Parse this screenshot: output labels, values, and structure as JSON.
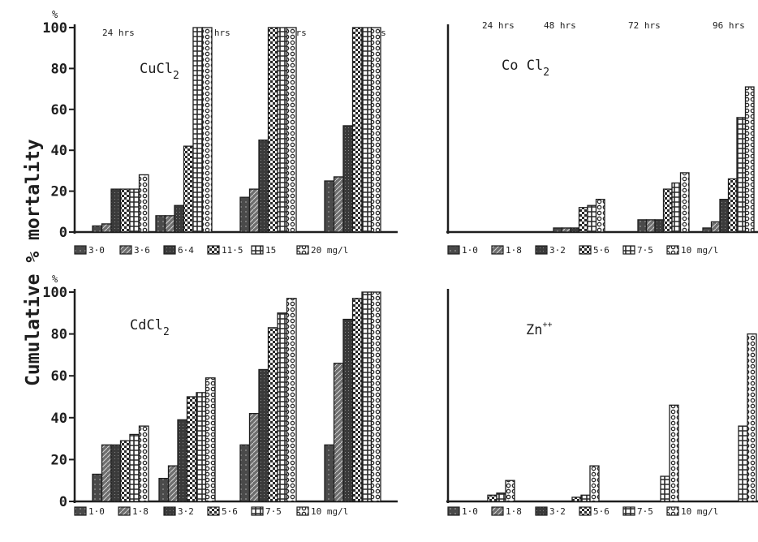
{
  "figure": {
    "ylabel": "Cumulative % mortality"
  },
  "chart_data": [
    {
      "type": "bar",
      "title": "CuCl",
      "title_sub": "2",
      "ylabel_unit": "%",
      "ylim": [
        0,
        100
      ],
      "yticks": [
        0,
        20,
        40,
        60,
        80,
        100
      ],
      "categories": [
        "24 hrs",
        "48 hrs",
        "72 hrs",
        "96 hrs"
      ],
      "legend_items": [
        "3·0",
        "3·6",
        "6·4",
        "11·5",
        "15",
        "20 mg/l"
      ],
      "series": [
        {
          "name": "3·0",
          "values": [
            3,
            8,
            17,
            25
          ]
        },
        {
          "name": "3·6",
          "values": [
            4,
            8,
            21,
            27
          ]
        },
        {
          "name": "6·4",
          "values": [
            21,
            13,
            45,
            52
          ]
        },
        {
          "name": "11·5",
          "values": [
            21,
            42,
            100,
            100
          ]
        },
        {
          "name": "15",
          "values": [
            21,
            100,
            100,
            100
          ]
        },
        {
          "name": "20 mg/l",
          "values": [
            28,
            100,
            100,
            100
          ]
        }
      ]
    },
    {
      "type": "bar",
      "title": "Co Cl",
      "title_sub": "2",
      "ylabel_unit": "",
      "ylim": [
        0,
        100
      ],
      "yticks": [],
      "categories": [
        "24 hrs",
        "48 hrs",
        "72 hrs",
        "96 hrs"
      ],
      "legend_items": [
        "1·0",
        "1·8",
        "3·2",
        "5·6",
        "7·5",
        "10 mg/l"
      ],
      "series": [
        {
          "name": "1·0",
          "values": [
            0,
            2,
            6,
            2
          ]
        },
        {
          "name": "1·8",
          "values": [
            0,
            2,
            6,
            5
          ]
        },
        {
          "name": "3·2",
          "values": [
            0,
            2,
            6,
            16
          ]
        },
        {
          "name": "5·6",
          "values": [
            0,
            12,
            21,
            26
          ]
        },
        {
          "name": "7·5",
          "values": [
            0,
            13,
            24,
            56
          ]
        },
        {
          "name": "10 mg/l",
          "values": [
            0,
            16,
            29,
            71
          ]
        }
      ]
    },
    {
      "type": "bar",
      "title": "CdCl",
      "title_sub": "2",
      "ylabel_unit": "%",
      "ylim": [
        0,
        100
      ],
      "yticks": [
        0,
        20,
        40,
        60,
        80,
        100
      ],
      "categories": [
        "24 hrs",
        "48 hrs",
        "72 hrs",
        "96 hrs"
      ],
      "legend_items": [
        "1·0",
        "1·8",
        "3·2",
        "5·6",
        "7·5",
        "10 mg/l"
      ],
      "series": [
        {
          "name": "1·0",
          "values": [
            13,
            11,
            27,
            27
          ]
        },
        {
          "name": "1·8",
          "values": [
            27,
            17,
            42,
            66
          ]
        },
        {
          "name": "3·2",
          "values": [
            27,
            39,
            63,
            87
          ]
        },
        {
          "name": "5·6",
          "values": [
            29,
            50,
            83,
            97
          ]
        },
        {
          "name": "7·5",
          "values": [
            32,
            52,
            90,
            100
          ]
        },
        {
          "name": "10 mg/l",
          "values": [
            36,
            59,
            97,
            100
          ]
        }
      ]
    },
    {
      "type": "bar",
      "title": "Zn",
      "title_sup": "++",
      "ylabel_unit": "",
      "ylim": [
        0,
        100
      ],
      "yticks": [],
      "categories": [
        "24 hrs",
        "48 hrs",
        "72 hrs",
        "96 hrs"
      ],
      "legend_items": [
        "1·0",
        "1·8",
        "3·2",
        "5·6",
        "7·5",
        "10 mg/l"
      ],
      "series": [
        {
          "name": "1·0",
          "values": [
            0,
            0,
            0,
            0
          ]
        },
        {
          "name": "1·8",
          "values": [
            0,
            0,
            0,
            0
          ]
        },
        {
          "name": "3·2",
          "values": [
            0,
            0,
            0,
            0
          ]
        },
        {
          "name": "5·6",
          "values": [
            3,
            2,
            0,
            0
          ]
        },
        {
          "name": "7·5",
          "values": [
            4,
            3,
            12,
            36
          ]
        },
        {
          "name": "10 mg/l",
          "values": [
            10,
            17,
            46,
            80
          ]
        }
      ]
    }
  ]
}
